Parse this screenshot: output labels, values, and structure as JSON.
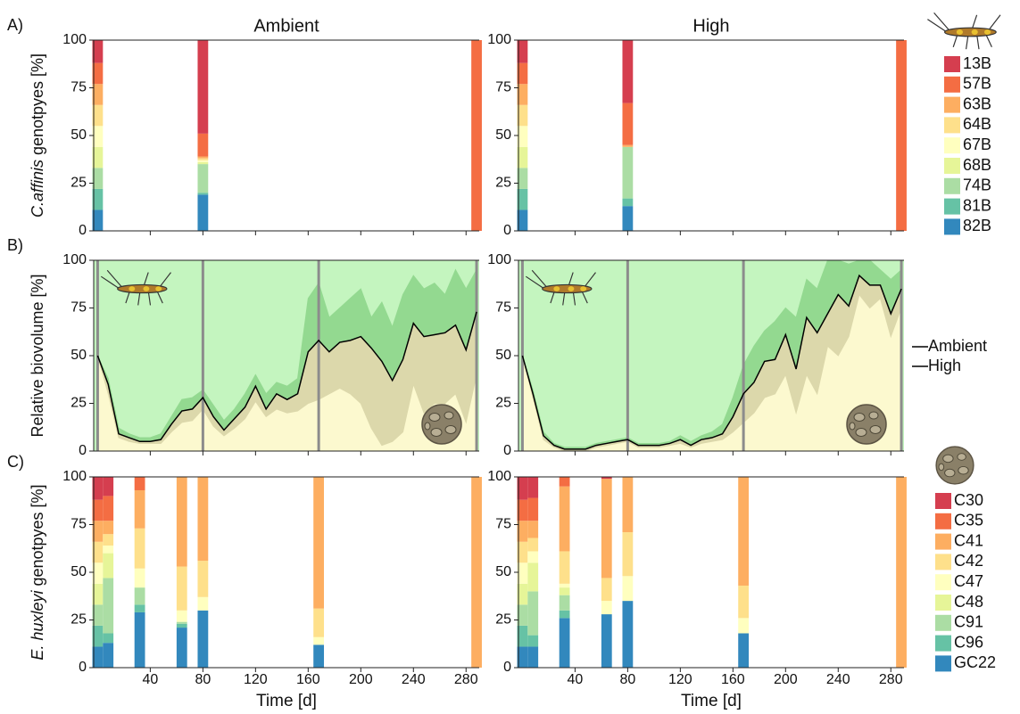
{
  "chart_data": [
    {
      "type": "stacked_bar",
      "panel_label": "A)",
      "title": "Ambient",
      "ylabel_species": "C.affinis",
      "ylabel_rest": "genotpyes [%]",
      "xlim": [
        -3,
        290
      ],
      "xticks": [
        40,
        80,
        120,
        160,
        200,
        240,
        280
      ],
      "xticklabels": false,
      "ylim": [
        0,
        100
      ],
      "yticks": [
        0,
        25,
        50,
        75,
        100
      ],
      "x": [
        0,
        80,
        288
      ],
      "series": [
        {
          "name": "13B",
          "color": "#d53e4f",
          "values": [
            12,
            49,
            0
          ]
        },
        {
          "name": "57B",
          "color": "#f46d43",
          "values": [
            11,
            12,
            100
          ]
        },
        {
          "name": "63B",
          "color": "#fdae61",
          "values": [
            11,
            1,
            0
          ]
        },
        {
          "name": "64B",
          "color": "#fee08b",
          "values": [
            11,
            1,
            0
          ]
        },
        {
          "name": "67B",
          "color": "#ffffbf",
          "values": [
            11,
            1,
            0
          ]
        },
        {
          "name": "68B",
          "color": "#e6f598",
          "values": [
            11,
            1,
            0
          ]
        },
        {
          "name": "74B",
          "color": "#abdda4",
          "values": [
            11,
            15,
            0
          ]
        },
        {
          "name": "81B",
          "color": "#66c2a5",
          "values": [
            11,
            1,
            0
          ]
        },
        {
          "name": "82B",
          "color": "#3288bd",
          "values": [
            11,
            19,
            0
          ]
        }
      ]
    },
    {
      "type": "stacked_bar",
      "title": "High",
      "xlim": [
        -3,
        290
      ],
      "xticks": [
        40,
        80,
        120,
        160,
        200,
        240,
        280
      ],
      "xticklabels": false,
      "ylim": [
        0,
        100
      ],
      "yticks": [
        0,
        25,
        50,
        75,
        100
      ],
      "x": [
        0,
        80,
        288
      ],
      "series": [
        {
          "name": "13B",
          "color": "#d53e4f",
          "values": [
            12,
            33,
            0
          ]
        },
        {
          "name": "57B",
          "color": "#f46d43",
          "values": [
            11,
            22,
            100
          ]
        },
        {
          "name": "63B",
          "color": "#fdae61",
          "values": [
            11,
            1,
            0
          ]
        },
        {
          "name": "64B",
          "color": "#fee08b",
          "values": [
            11,
            0,
            0
          ]
        },
        {
          "name": "67B",
          "color": "#ffffbf",
          "values": [
            11,
            0,
            0
          ]
        },
        {
          "name": "68B",
          "color": "#e6f598",
          "values": [
            11,
            0,
            0
          ]
        },
        {
          "name": "74B",
          "color": "#abdda4",
          "values": [
            11,
            27,
            0
          ]
        },
        {
          "name": "81B",
          "color": "#66c2a5",
          "values": [
            11,
            4,
            0
          ]
        },
        {
          "name": "82B",
          "color": "#3288bd",
          "values": [
            11,
            13,
            0
          ]
        }
      ]
    },
    {
      "type": "line",
      "panel_label": "B)",
      "ylabel": "Relative biovolume [%]",
      "xlim": [
        -3,
        290
      ],
      "xticks": [
        40,
        80,
        120,
        160,
        200,
        240,
        280
      ],
      "xticklabels": false,
      "ylim": [
        0,
        100
      ],
      "yticks": [
        0,
        25,
        50,
        75,
        100
      ],
      "vlines": [
        0,
        80,
        168,
        288
      ],
      "vline_color": "#8c8c8c",
      "x": [
        0,
        8,
        16,
        24,
        32,
        40,
        48,
        56,
        64,
        72,
        80,
        88,
        96,
        104,
        112,
        120,
        128,
        136,
        144,
        152,
        160,
        168,
        176,
        184,
        192,
        200,
        208,
        216,
        224,
        232,
        240,
        248,
        256,
        264,
        272,
        280,
        288
      ],
      "series": [
        {
          "name": "Ambient",
          "color": "#000000",
          "fill_above": "#c4f5bf",
          "band_above": "#93d990",
          "band_below": "#dcd8ab",
          "fill_below": "#fcf9cf",
          "values": [
            50,
            35,
            9,
            7,
            5,
            5,
            6,
            14,
            21,
            22,
            28,
            18,
            11,
            17,
            23,
            34,
            22,
            30,
            27,
            30,
            52,
            58,
            52,
            57,
            58,
            60,
            54,
            47,
            37,
            48,
            67,
            60,
            61,
            62,
            66,
            53,
            73
          ],
          "upper": [
            50,
            38,
            12,
            9,
            7,
            7,
            9,
            18,
            27,
            28,
            32,
            24,
            16,
            22,
            30,
            40,
            30,
            36,
            34,
            38,
            80,
            88,
            70,
            75,
            80,
            85,
            70,
            78,
            65,
            82,
            92,
            85,
            88,
            82,
            95,
            85,
            95
          ],
          "lower": [
            50,
            30,
            7,
            5,
            4,
            4,
            4,
            10,
            15,
            16,
            22,
            13,
            8,
            12,
            17,
            26,
            18,
            22,
            20,
            21,
            25,
            27,
            30,
            33,
            30,
            25,
            12,
            3,
            5,
            10,
            35,
            20,
            25,
            25,
            30,
            15,
            40
          ]
        }
      ]
    },
    {
      "type": "line",
      "xlim": [
        -3,
        290
      ],
      "xticks": [
        40,
        80,
        120,
        160,
        200,
        240,
        280
      ],
      "xticklabels": false,
      "ylim": [
        0,
        100
      ],
      "yticks": [
        0,
        25,
        50,
        75,
        100
      ],
      "vlines": [
        0,
        80,
        168,
        288
      ],
      "vline_color": "#8c8c8c",
      "x": [
        0,
        8,
        16,
        24,
        32,
        40,
        48,
        56,
        64,
        72,
        80,
        88,
        96,
        104,
        112,
        120,
        128,
        136,
        144,
        152,
        160,
        168,
        176,
        184,
        192,
        200,
        208,
        216,
        224,
        232,
        240,
        248,
        256,
        264,
        272,
        280,
        288
      ],
      "series": [
        {
          "name": "High",
          "color": "#000000",
          "fill_above": "#c4f5bf",
          "band_above": "#93d990",
          "band_below": "#dcd8ab",
          "fill_below": "#fcf9cf",
          "values": [
            50,
            30,
            8,
            3,
            1,
            1,
            1,
            3,
            4,
            5,
            6,
            3,
            3,
            3,
            4,
            6,
            3,
            6,
            7,
            9,
            18,
            30,
            36,
            47,
            48,
            61,
            43,
            70,
            62,
            72,
            82,
            76,
            92,
            87,
            87,
            72,
            85
          ],
          "upper": [
            50,
            32,
            10,
            4,
            2,
            2,
            2,
            4,
            5,
            6,
            7,
            4,
            4,
            4,
            5,
            8,
            5,
            8,
            10,
            14,
            28,
            45,
            55,
            63,
            68,
            75,
            70,
            90,
            85,
            100,
            100,
            98,
            100,
            100,
            95,
            90,
            95
          ],
          "lower": [
            50,
            28,
            6,
            2,
            0,
            0,
            0,
            2,
            3,
            4,
            5,
            2,
            2,
            2,
            3,
            4,
            2,
            4,
            5,
            6,
            10,
            15,
            20,
            28,
            30,
            40,
            20,
            40,
            30,
            55,
            50,
            60,
            82,
            75,
            80,
            60,
            75
          ]
        }
      ]
    },
    {
      "type": "stacked_bar",
      "panel_label": "C)",
      "ylabel_species": "E. huxleyi",
      "ylabel_rest": "genotpyes [%]",
      "xlabel": "Time [d]",
      "xlim": [
        -3,
        290
      ],
      "xticks": [
        40,
        80,
        120,
        160,
        200,
        240,
        280
      ],
      "xticklabels": true,
      "ylim": [
        0,
        100
      ],
      "yticks": [
        0,
        25,
        50,
        75,
        100
      ],
      "x": [
        0,
        8,
        32,
        64,
        80,
        168,
        288
      ],
      "series": [
        {
          "name": "C30",
          "color": "#d53e4f",
          "values": [
            12,
            10,
            0,
            0,
            0,
            0,
            0
          ]
        },
        {
          "name": "C35",
          "color": "#f46d43",
          "values": [
            11,
            13,
            7,
            0,
            0,
            0,
            0
          ]
        },
        {
          "name": "C41",
          "color": "#fdae61",
          "values": [
            11,
            7,
            20,
            47,
            44,
            69,
            100
          ]
        },
        {
          "name": "C42",
          "color": "#fee08b",
          "values": [
            11,
            6,
            21,
            23,
            19,
            15,
            0
          ]
        },
        {
          "name": "C47",
          "color": "#ffffbf",
          "values": [
            11,
            4,
            10,
            6,
            7,
            4,
            0
          ]
        },
        {
          "name": "C48",
          "color": "#e6f598",
          "values": [
            11,
            13,
            0,
            0,
            0,
            0,
            0
          ]
        },
        {
          "name": "C91",
          "color": "#abdda4",
          "values": [
            11,
            29,
            9,
            1,
            0,
            0,
            0
          ]
        },
        {
          "name": "C96",
          "color": "#66c2a5",
          "values": [
            11,
            5,
            4,
            2,
            0,
            0,
            0
          ]
        },
        {
          "name": "GC22",
          "color": "#3288bd",
          "values": [
            11,
            13,
            29,
            21,
            30,
            12,
            0
          ]
        }
      ]
    },
    {
      "type": "stacked_bar",
      "xlabel": "Time [d]",
      "xlim": [
        -3,
        290
      ],
      "xticks": [
        40,
        80,
        120,
        160,
        200,
        240,
        280
      ],
      "xticklabels": true,
      "ylim": [
        0,
        100
      ],
      "yticks": [
        0,
        25,
        50,
        75,
        100
      ],
      "x": [
        0,
        8,
        32,
        64,
        80,
        168,
        288
      ],
      "series": [
        {
          "name": "C30",
          "color": "#d53e4f",
          "values": [
            12,
            11,
            0,
            1,
            0,
            0,
            0
          ]
        },
        {
          "name": "C35",
          "color": "#f46d43",
          "values": [
            11,
            12,
            5,
            0,
            0,
            0,
            0
          ]
        },
        {
          "name": "C41",
          "color": "#fdae61",
          "values": [
            11,
            9,
            34,
            52,
            29,
            57,
            100
          ]
        },
        {
          "name": "C42",
          "color": "#fee08b",
          "values": [
            11,
            7,
            17,
            12,
            23,
            17,
            0
          ]
        },
        {
          "name": "C47",
          "color": "#ffffbf",
          "values": [
            11,
            6,
            2,
            7,
            13,
            8,
            0
          ]
        },
        {
          "name": "C48",
          "color": "#e6f598",
          "values": [
            11,
            15,
            4,
            0,
            0,
            0,
            0
          ]
        },
        {
          "name": "C91",
          "color": "#abdda4",
          "values": [
            11,
            23,
            8,
            0,
            0,
            0,
            0
          ]
        },
        {
          "name": "C96",
          "color": "#66c2a5",
          "values": [
            11,
            6,
            4,
            0,
            0,
            0,
            0
          ]
        },
        {
          "name": "GC22",
          "color": "#3288bd",
          "values": [
            11,
            11,
            26,
            28,
            35,
            18,
            0
          ]
        }
      ]
    }
  ]
}
